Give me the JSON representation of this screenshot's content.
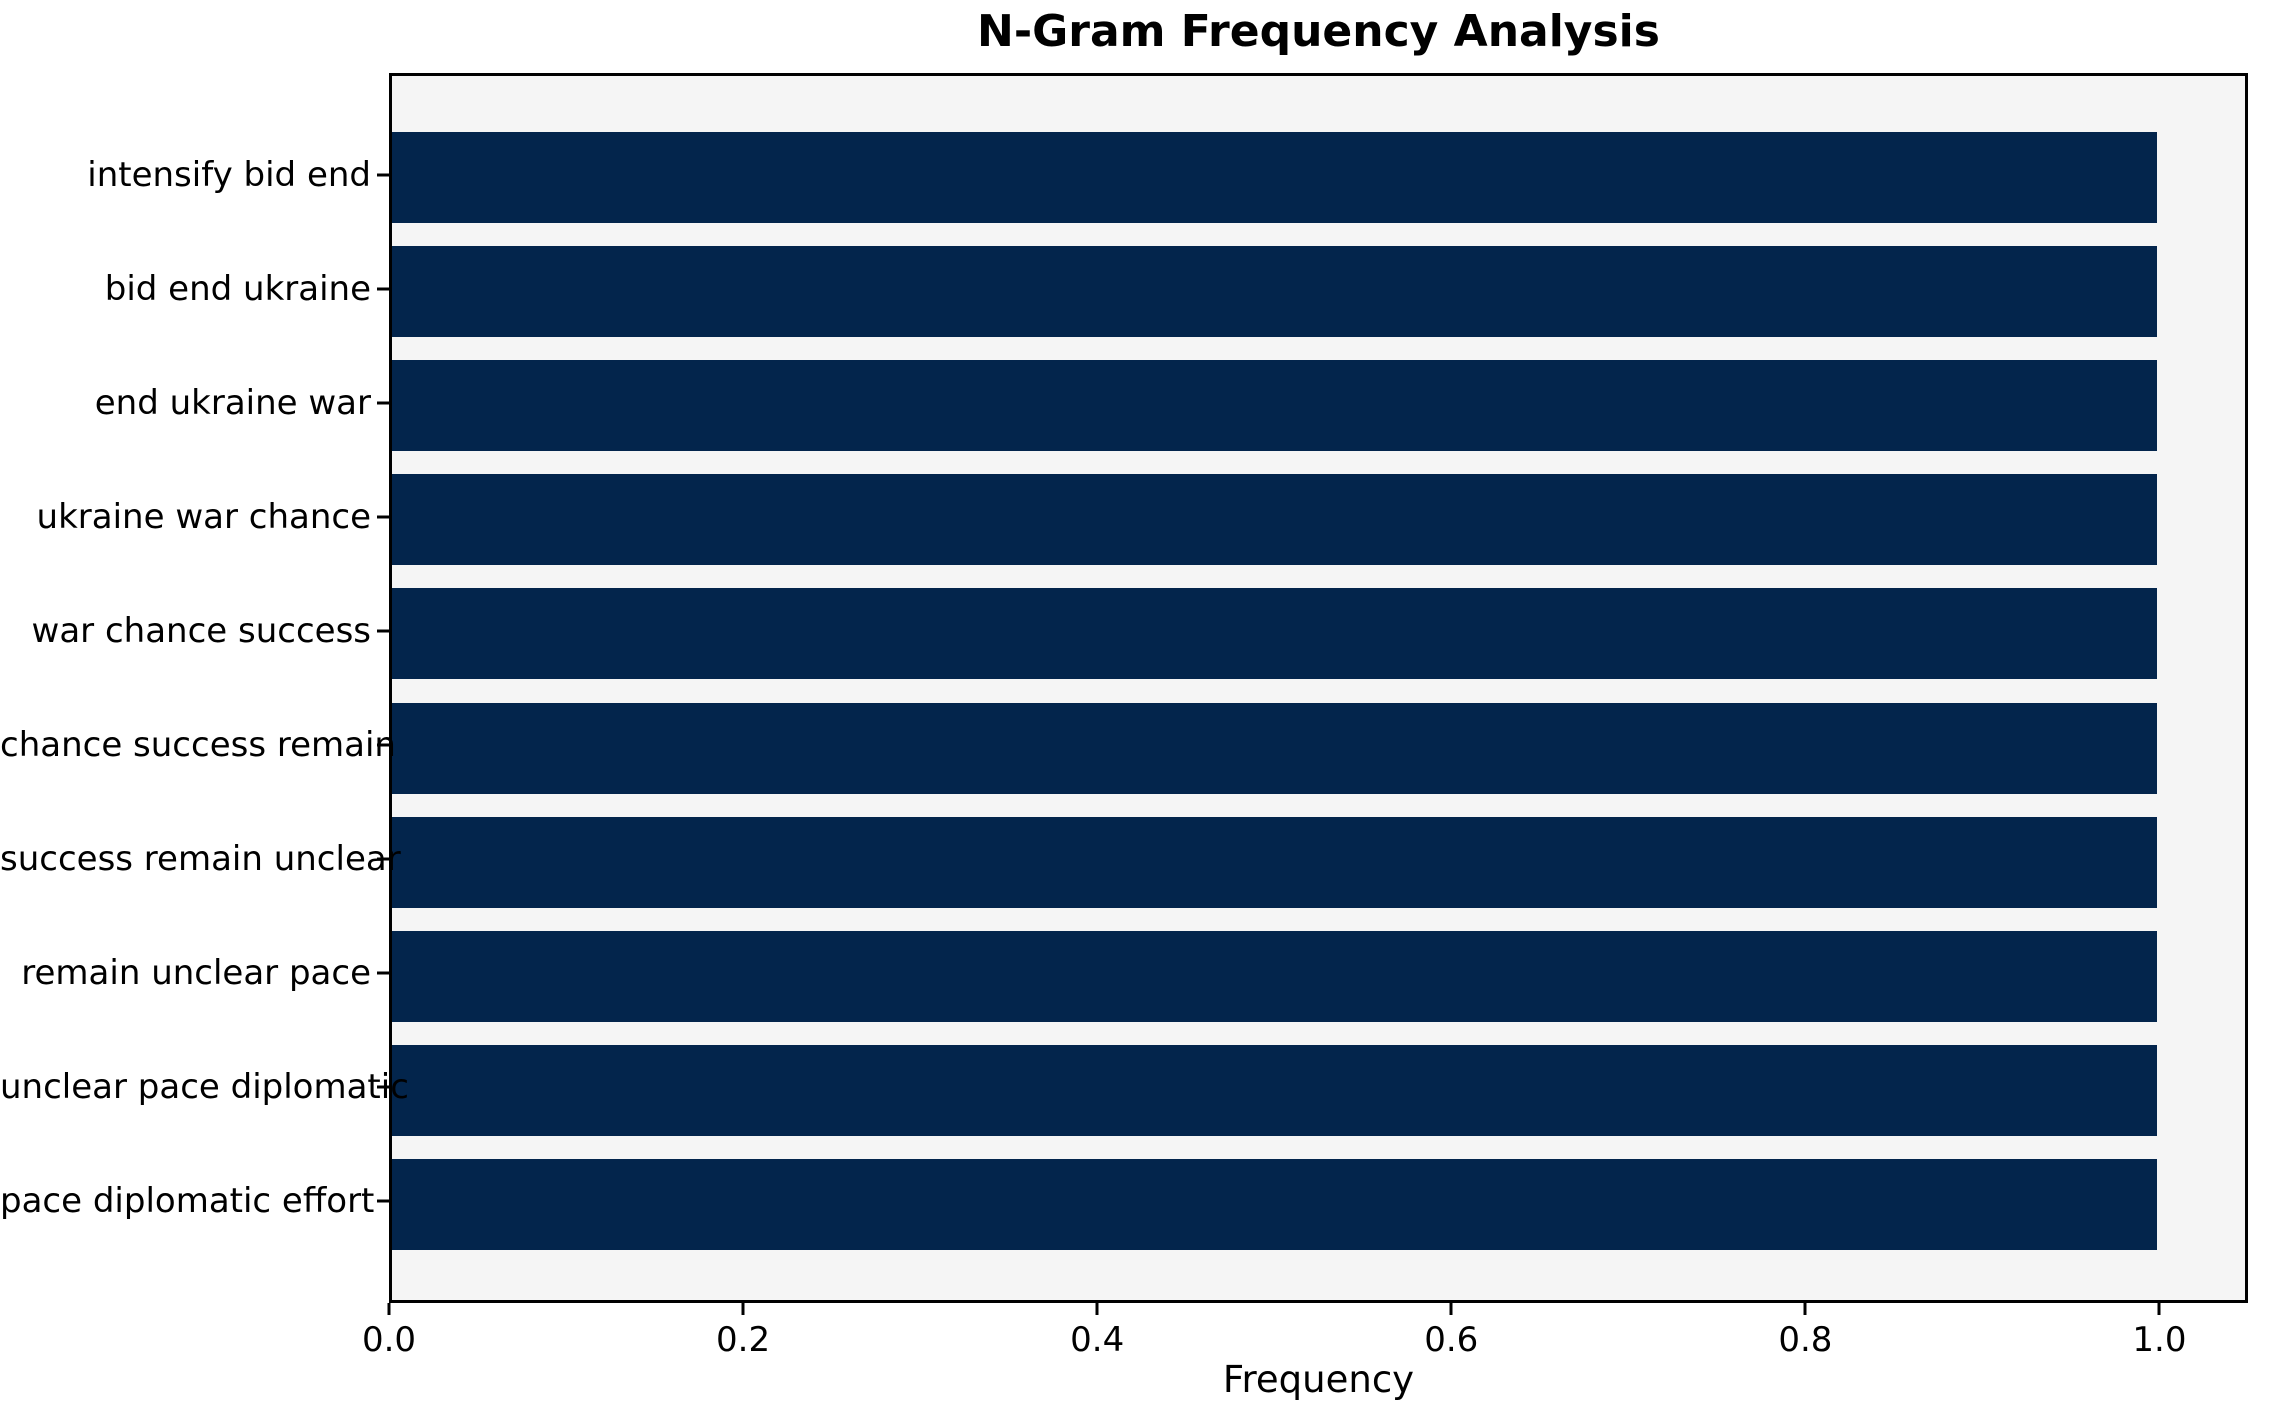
{
  "figure": {
    "background": "#ffffff",
    "text_color": "#000000",
    "spine_color": "#000000"
  },
  "chart_data": {
    "type": "bar",
    "orientation": "horizontal",
    "title": "N-Gram Frequency Analysis",
    "xlabel": "Frequency",
    "ylabel": "",
    "categories": [
      "intensify bid end",
      "bid end ukraine",
      "end ukraine war",
      "ukraine war chance",
      "war chance success",
      "chance success remain",
      "success remain unclear",
      "remain unclear pace",
      "unclear pace diplomatic",
      "pace diplomatic effort"
    ],
    "values": [
      1.0,
      1.0,
      1.0,
      1.0,
      1.0,
      1.0,
      1.0,
      1.0,
      1.0,
      1.0
    ],
    "xlim": [
      0,
      1.05
    ],
    "xticks": [
      {
        "value": 0.0,
        "label": "0.0"
      },
      {
        "value": 0.2,
        "label": "0.2"
      },
      {
        "value": 0.4,
        "label": "0.4"
      },
      {
        "value": 0.6,
        "label": "0.6"
      },
      {
        "value": 0.8,
        "label": "0.8"
      },
      {
        "value": 1.0,
        "label": "1.0"
      }
    ],
    "grid": false,
    "legend": null,
    "bar_color": "#03254c",
    "plot_background": "#f5f5f5"
  }
}
